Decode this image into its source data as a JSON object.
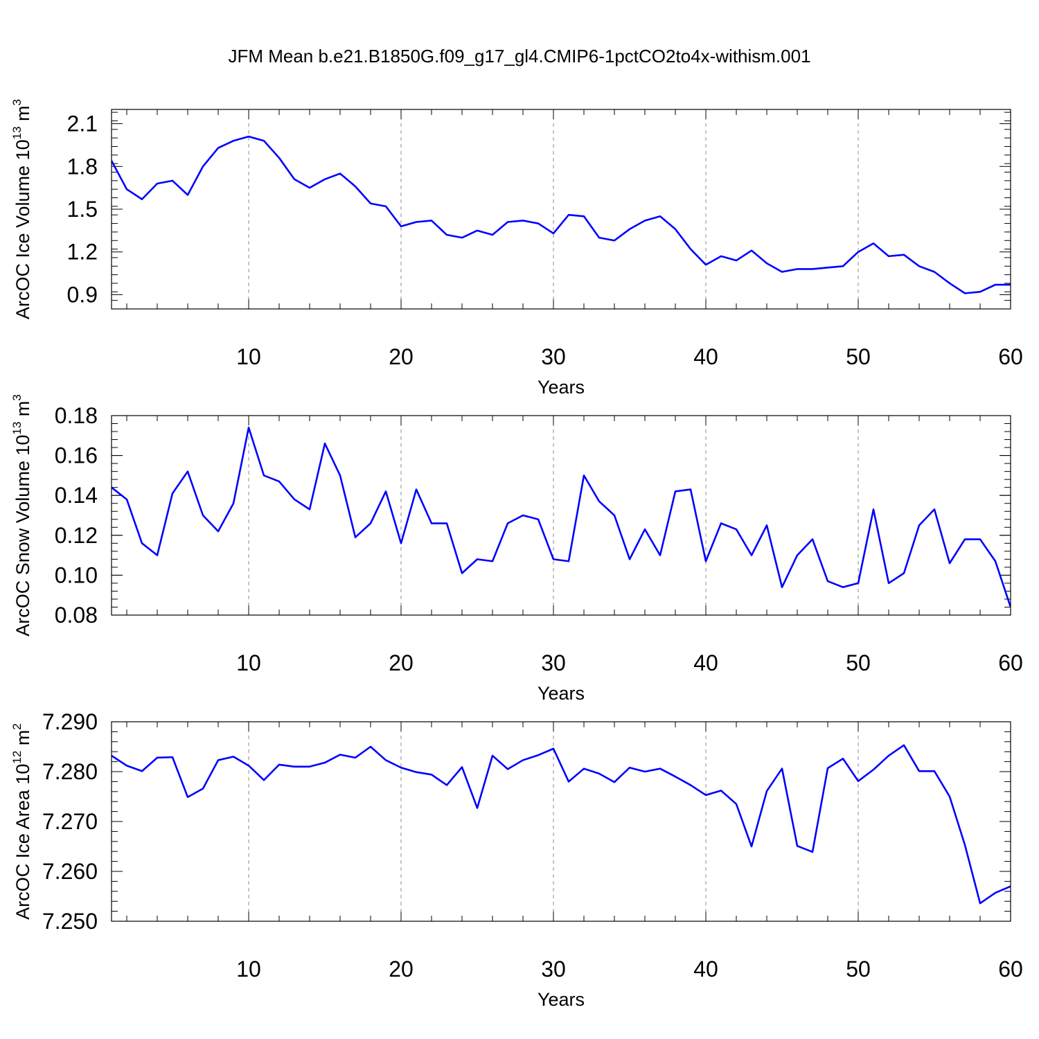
{
  "figure_title": "JFM Mean b.e21.B1850G.f09_g17_gl4.CMIP6-1pctCO2to4x-withism.001",
  "colors": {
    "series": "#0000ff",
    "grid": "#888888",
    "axes": "#000000"
  },
  "chart_data": [
    {
      "type": "line",
      "title": "",
      "xlabel": "Years",
      "ylabel_base": "ArcOC Ice Volume 10",
      "ylabel_exp": "13",
      "ylabel_unit": " m",
      "ylabel_unit_exp": "3",
      "xlim": [
        1,
        60
      ],
      "ylim": [
        0.8,
        2.2
      ],
      "xticks": [
        10,
        20,
        30,
        40,
        50,
        60
      ],
      "xtick_labels": [
        "10",
        "20",
        "30",
        "40",
        "50",
        "60"
      ],
      "yticks": [
        0.9,
        1.2,
        1.5,
        1.8,
        2.1
      ],
      "ytick_labels": [
        "0.9",
        "1.2",
        "1.5",
        "1.8",
        "2.1"
      ],
      "y_minor_step": 0.06,
      "grid": "dashed vertical at major x ticks",
      "series": [
        {
          "x": [
            1,
            2,
            3,
            4,
            5,
            6,
            7,
            8,
            9,
            10,
            11,
            12,
            13,
            14,
            15,
            16,
            17,
            18,
            19,
            20,
            21,
            22,
            23,
            24,
            25,
            26,
            27,
            28,
            29,
            30,
            31,
            32,
            33,
            34,
            35,
            36,
            37,
            38,
            39,
            40,
            41,
            42,
            43,
            44,
            45,
            46,
            47,
            48,
            49,
            50,
            51,
            52,
            53,
            54,
            55,
            56,
            57,
            58,
            59,
            60
          ],
          "values": [
            1.84,
            1.64,
            1.57,
            1.68,
            1.7,
            1.6,
            1.8,
            1.93,
            1.98,
            2.01,
            1.98,
            1.86,
            1.71,
            1.65,
            1.71,
            1.75,
            1.66,
            1.54,
            1.52,
            1.38,
            1.41,
            1.42,
            1.32,
            1.3,
            1.35,
            1.32,
            1.41,
            1.42,
            1.4,
            1.33,
            1.46,
            1.45,
            1.3,
            1.28,
            1.36,
            1.42,
            1.45,
            1.36,
            1.22,
            1.11,
            1.17,
            1.14,
            1.21,
            1.12,
            1.06,
            1.08,
            1.08,
            1.09,
            1.1,
            1.2,
            1.26,
            1.17,
            1.18,
            1.1,
            1.06,
            0.98,
            0.91,
            0.92,
            0.97,
            0.97
          ]
        }
      ]
    },
    {
      "type": "line",
      "title": "",
      "xlabel": "Years",
      "ylabel_base": "ArcOC Snow Volume 10",
      "ylabel_exp": "13",
      "ylabel_unit": " m",
      "ylabel_unit_exp": "3",
      "xlim": [
        1,
        60
      ],
      "ylim": [
        0.08,
        0.18
      ],
      "xticks": [
        10,
        20,
        30,
        40,
        50,
        60
      ],
      "xtick_labels": [
        "10",
        "20",
        "30",
        "40",
        "50",
        "60"
      ],
      "yticks": [
        0.08,
        0.1,
        0.12,
        0.14,
        0.16,
        0.18
      ],
      "ytick_labels": [
        "0.08",
        "0.10",
        "0.12",
        "0.14",
        "0.16",
        "0.18"
      ],
      "y_minor_step": 0.004,
      "grid": "dashed vertical at major x ticks",
      "series": [
        {
          "x": [
            1,
            2,
            3,
            4,
            5,
            6,
            7,
            8,
            9,
            10,
            11,
            12,
            13,
            14,
            15,
            16,
            17,
            18,
            19,
            20,
            21,
            22,
            23,
            24,
            25,
            26,
            27,
            28,
            29,
            30,
            31,
            32,
            33,
            34,
            35,
            36,
            37,
            38,
            39,
            40,
            41,
            42,
            43,
            44,
            45,
            46,
            47,
            48,
            49,
            50,
            51,
            52,
            53,
            54,
            55,
            56,
            57,
            58,
            59,
            60
          ],
          "values": [
            0.144,
            0.138,
            0.116,
            0.11,
            0.141,
            0.152,
            0.13,
            0.122,
            0.136,
            0.174,
            0.15,
            0.147,
            0.138,
            0.133,
            0.166,
            0.15,
            0.119,
            0.126,
            0.142,
            0.116,
            0.143,
            0.126,
            0.126,
            0.101,
            0.108,
            0.107,
            0.126,
            0.13,
            0.128,
            0.108,
            0.107,
            0.15,
            0.137,
            0.13,
            0.108,
            0.123,
            0.11,
            0.142,
            0.143,
            0.107,
            0.126,
            0.123,
            0.11,
            0.125,
            0.094,
            0.11,
            0.118,
            0.097,
            0.094,
            0.096,
            0.133,
            0.096,
            0.101,
            0.125,
            0.133,
            0.106,
            0.118,
            0.118,
            0.107,
            0.084
          ]
        }
      ]
    },
    {
      "type": "line",
      "title": "",
      "xlabel": "Years",
      "ylabel_base": "ArcOC Ice Area 10",
      "ylabel_exp": "12",
      "ylabel_unit": " m",
      "ylabel_unit_exp": "2",
      "xlim": [
        1,
        60
      ],
      "ylim": [
        7.25,
        7.29
      ],
      "xticks": [
        10,
        20,
        30,
        40,
        50,
        60
      ],
      "xtick_labels": [
        "10",
        "20",
        "30",
        "40",
        "50",
        "60"
      ],
      "yticks": [
        7.25,
        7.26,
        7.27,
        7.28,
        7.29
      ],
      "ytick_labels": [
        "7.250",
        "7.260",
        "7.270",
        "7.280",
        "7.290"
      ],
      "y_minor_step": 0.002,
      "grid": "dashed vertical at major x ticks",
      "series": [
        {
          "x": [
            1,
            2,
            3,
            4,
            5,
            6,
            7,
            8,
            9,
            10,
            11,
            12,
            13,
            14,
            15,
            16,
            17,
            18,
            19,
            20,
            21,
            22,
            23,
            24,
            25,
            26,
            27,
            28,
            29,
            30,
            31,
            32,
            33,
            34,
            35,
            36,
            37,
            38,
            39,
            40,
            41,
            42,
            43,
            44,
            45,
            46,
            47,
            48,
            49,
            50,
            51,
            52,
            53,
            54,
            55,
            56,
            57,
            58,
            59,
            60
          ],
          "values": [
            7.2832,
            7.2812,
            7.2801,
            7.2828,
            7.2829,
            7.2749,
            7.2766,
            7.2823,
            7.283,
            7.2812,
            7.2783,
            7.2814,
            7.281,
            7.281,
            7.2818,
            7.2834,
            7.2828,
            7.285,
            7.2823,
            7.2808,
            7.2799,
            7.2794,
            7.2773,
            7.2809,
            7.2727,
            7.2832,
            7.2805,
            7.2823,
            7.2833,
            7.2846,
            7.278,
            7.2806,
            7.2796,
            7.2779,
            7.2808,
            7.28,
            7.2806,
            7.279,
            7.2773,
            7.2753,
            7.2762,
            7.2735,
            7.265,
            7.2761,
            7.2806,
            7.2651,
            7.2639,
            7.2807,
            7.2826,
            7.2781,
            7.2804,
            7.2832,
            7.2853,
            7.2801,
            7.2801,
            7.275,
            7.2653,
            7.2536,
            7.2557,
            7.257
          ]
        }
      ]
    }
  ]
}
